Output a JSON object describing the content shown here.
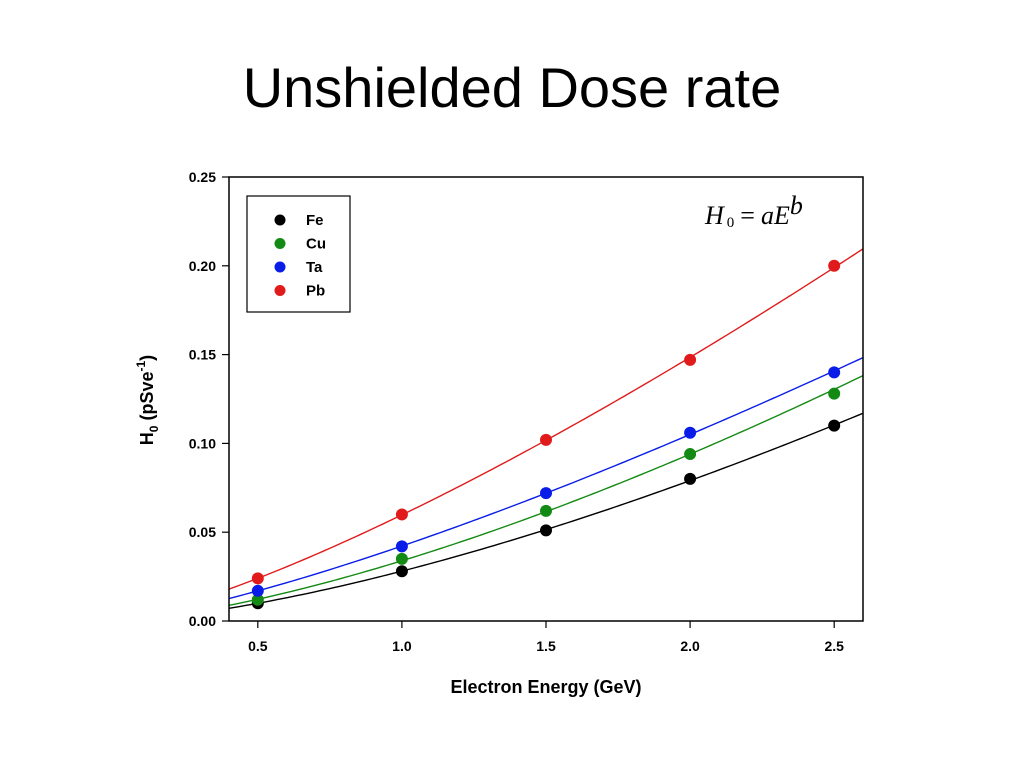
{
  "slide": {
    "title": "Unshielded Dose rate"
  },
  "equation": {
    "lhs": "H",
    "sub": "0",
    "op": "=",
    "rhs": "aE",
    "exp": "b"
  },
  "chart_data": {
    "type": "scatter",
    "xlabel": "Electron Energy (GeV)",
    "ylabel": {
      "main": "H",
      "sub": "0",
      "after": " (pSve",
      "sup": "-1",
      "close": ")"
    },
    "xlim": [
      0.4,
      2.6
    ],
    "ylim": [
      0,
      0.25
    ],
    "xticks": [
      "0.5",
      "1.0",
      "1.5",
      "2.0",
      "2.5"
    ],
    "yticks": [
      "0.00",
      "0.05",
      "0.10",
      "0.15",
      "0.20",
      "0.25"
    ],
    "fit": "power law H0 = aE^b",
    "legend_position": "top-left",
    "grid": false,
    "x": [
      0.5,
      1.0,
      1.5,
      2.0,
      2.5
    ],
    "series": [
      {
        "name": "Fe",
        "color": "#000000",
        "values": [
          0.01,
          0.028,
          0.051,
          0.08,
          0.11
        ]
      },
      {
        "name": "Cu",
        "color": "#138a13",
        "values": [
          0.012,
          0.035,
          0.062,
          0.094,
          0.128
        ]
      },
      {
        "name": "Ta",
        "color": "#0a1de8",
        "values": [
          0.017,
          0.042,
          0.072,
          0.106,
          0.14
        ]
      },
      {
        "name": "Pb",
        "color": "#e11b1b",
        "values": [
          0.024,
          0.06,
          0.102,
          0.147,
          0.2
        ]
      }
    ]
  }
}
